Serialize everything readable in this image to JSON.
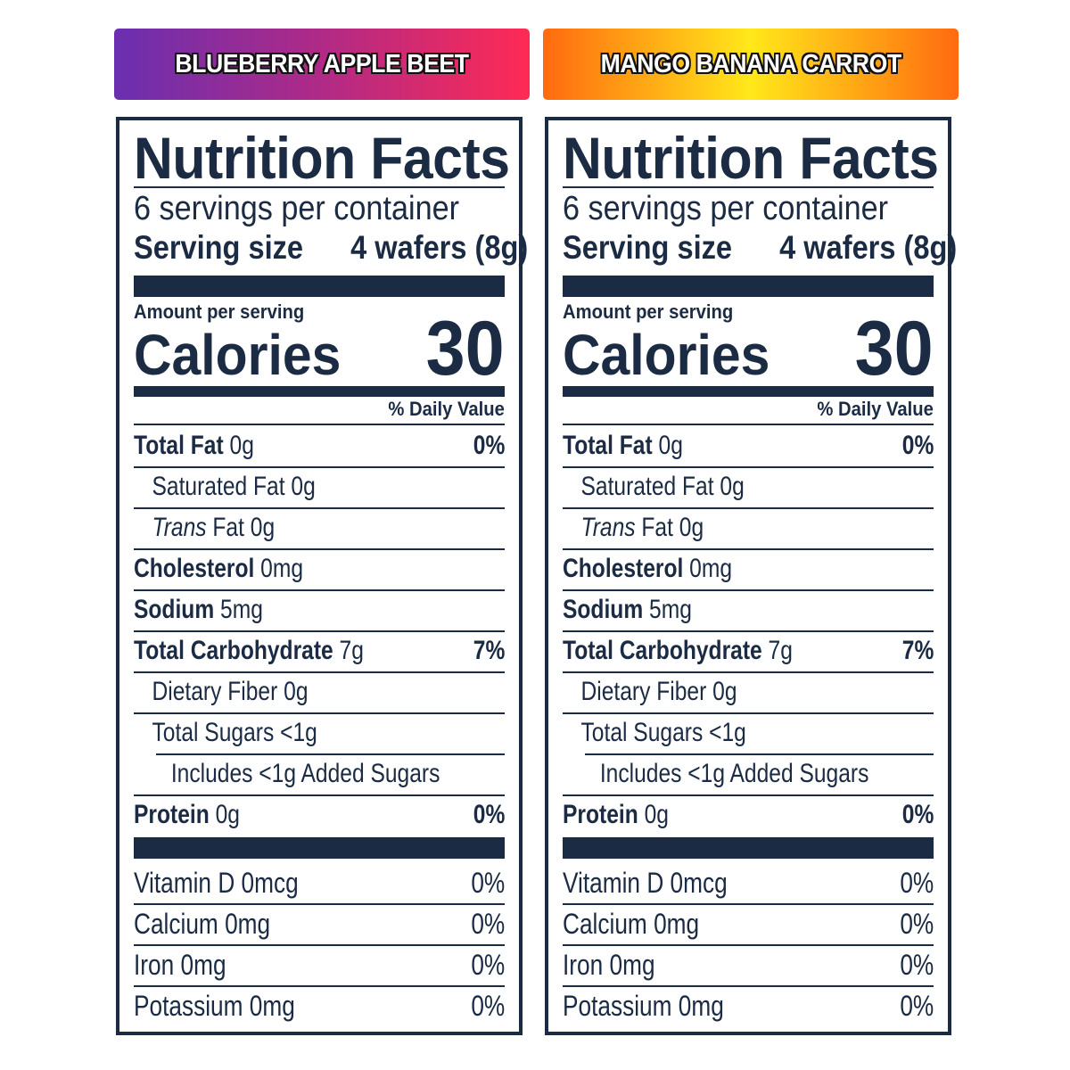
{
  "panels": [
    {
      "flavor": "BLUEBERRY APPLE BEET",
      "banner_colors": [
        "#6a2fb0",
        "#b02a86",
        "#ff2a55"
      ],
      "label": {
        "title": "Nutrition Facts",
        "servings": "6 servings per container",
        "serving_size_label": "Serving size",
        "serving_size_value": "4 wafers (8g)",
        "amount_per_serving": "Amount per serving",
        "calories_label": "Calories",
        "calories_value": "30",
        "dv_header": "% Daily Value",
        "nutrients": [
          {
            "name": "Total Fat",
            "amount": "0g",
            "dv": "0%"
          },
          {
            "name": "Saturated Fat",
            "amount": "0g",
            "dv": ""
          },
          {
            "name": "Trans",
            "suffix": "Fat",
            "amount": "0g",
            "dv": ""
          },
          {
            "name": "Cholesterol",
            "amount": "0mg",
            "dv": ""
          },
          {
            "name": "Sodium",
            "amount": "5mg",
            "dv": ""
          },
          {
            "name": "Total Carbohydrate",
            "amount": "7g",
            "dv": "7%"
          },
          {
            "name": "Dietary Fiber",
            "amount": "0g",
            "dv": ""
          },
          {
            "name": "Total Sugars",
            "amount": "<1g",
            "dv": ""
          },
          {
            "name": "Includes <1g Added Sugars",
            "amount": "",
            "dv": ""
          },
          {
            "name": "Protein",
            "amount": "0g",
            "dv": "0%"
          }
        ],
        "vitamins": [
          {
            "name": "Vitamin D 0mcg",
            "dv": "0%"
          },
          {
            "name": "Calcium 0mg",
            "dv": "0%"
          },
          {
            "name": "Iron 0mg",
            "dv": "0%"
          },
          {
            "name": "Potassium 0mg",
            "dv": "0%"
          }
        ]
      }
    },
    {
      "flavor": "MANGO BANANA CARROT",
      "banner_colors": [
        "#ff6a10",
        "#ffe81a",
        "#ff6a10"
      ],
      "label": {
        "title": "Nutrition Facts",
        "servings": "6 servings per container",
        "serving_size_label": "Serving size",
        "serving_size_value": "4 wafers (8g)",
        "amount_per_serving": "Amount per serving",
        "calories_label": "Calories",
        "calories_value": "30",
        "dv_header": "% Daily Value",
        "nutrients": [
          {
            "name": "Total Fat",
            "amount": "0g",
            "dv": "0%"
          },
          {
            "name": "Saturated Fat",
            "amount": "0g",
            "dv": ""
          },
          {
            "name": "Trans",
            "suffix": "Fat",
            "amount": "0g",
            "dv": ""
          },
          {
            "name": "Cholesterol",
            "amount": "0mg",
            "dv": ""
          },
          {
            "name": "Sodium",
            "amount": "5mg",
            "dv": ""
          },
          {
            "name": "Total Carbohydrate",
            "amount": "7g",
            "dv": "7%"
          },
          {
            "name": "Dietary Fiber",
            "amount": "0g",
            "dv": ""
          },
          {
            "name": "Total Sugars",
            "amount": "<1g",
            "dv": ""
          },
          {
            "name": "Includes <1g Added Sugars",
            "amount": "",
            "dv": ""
          },
          {
            "name": "Protein",
            "amount": "0g",
            "dv": "0%"
          }
        ],
        "vitamins": [
          {
            "name": "Vitamin D 0mcg",
            "dv": "0%"
          },
          {
            "name": "Calcium 0mg",
            "dv": "0%"
          },
          {
            "name": "Iron 0mg",
            "dv": "0%"
          },
          {
            "name": "Potassium 0mg",
            "dv": "0%"
          }
        ]
      }
    }
  ]
}
